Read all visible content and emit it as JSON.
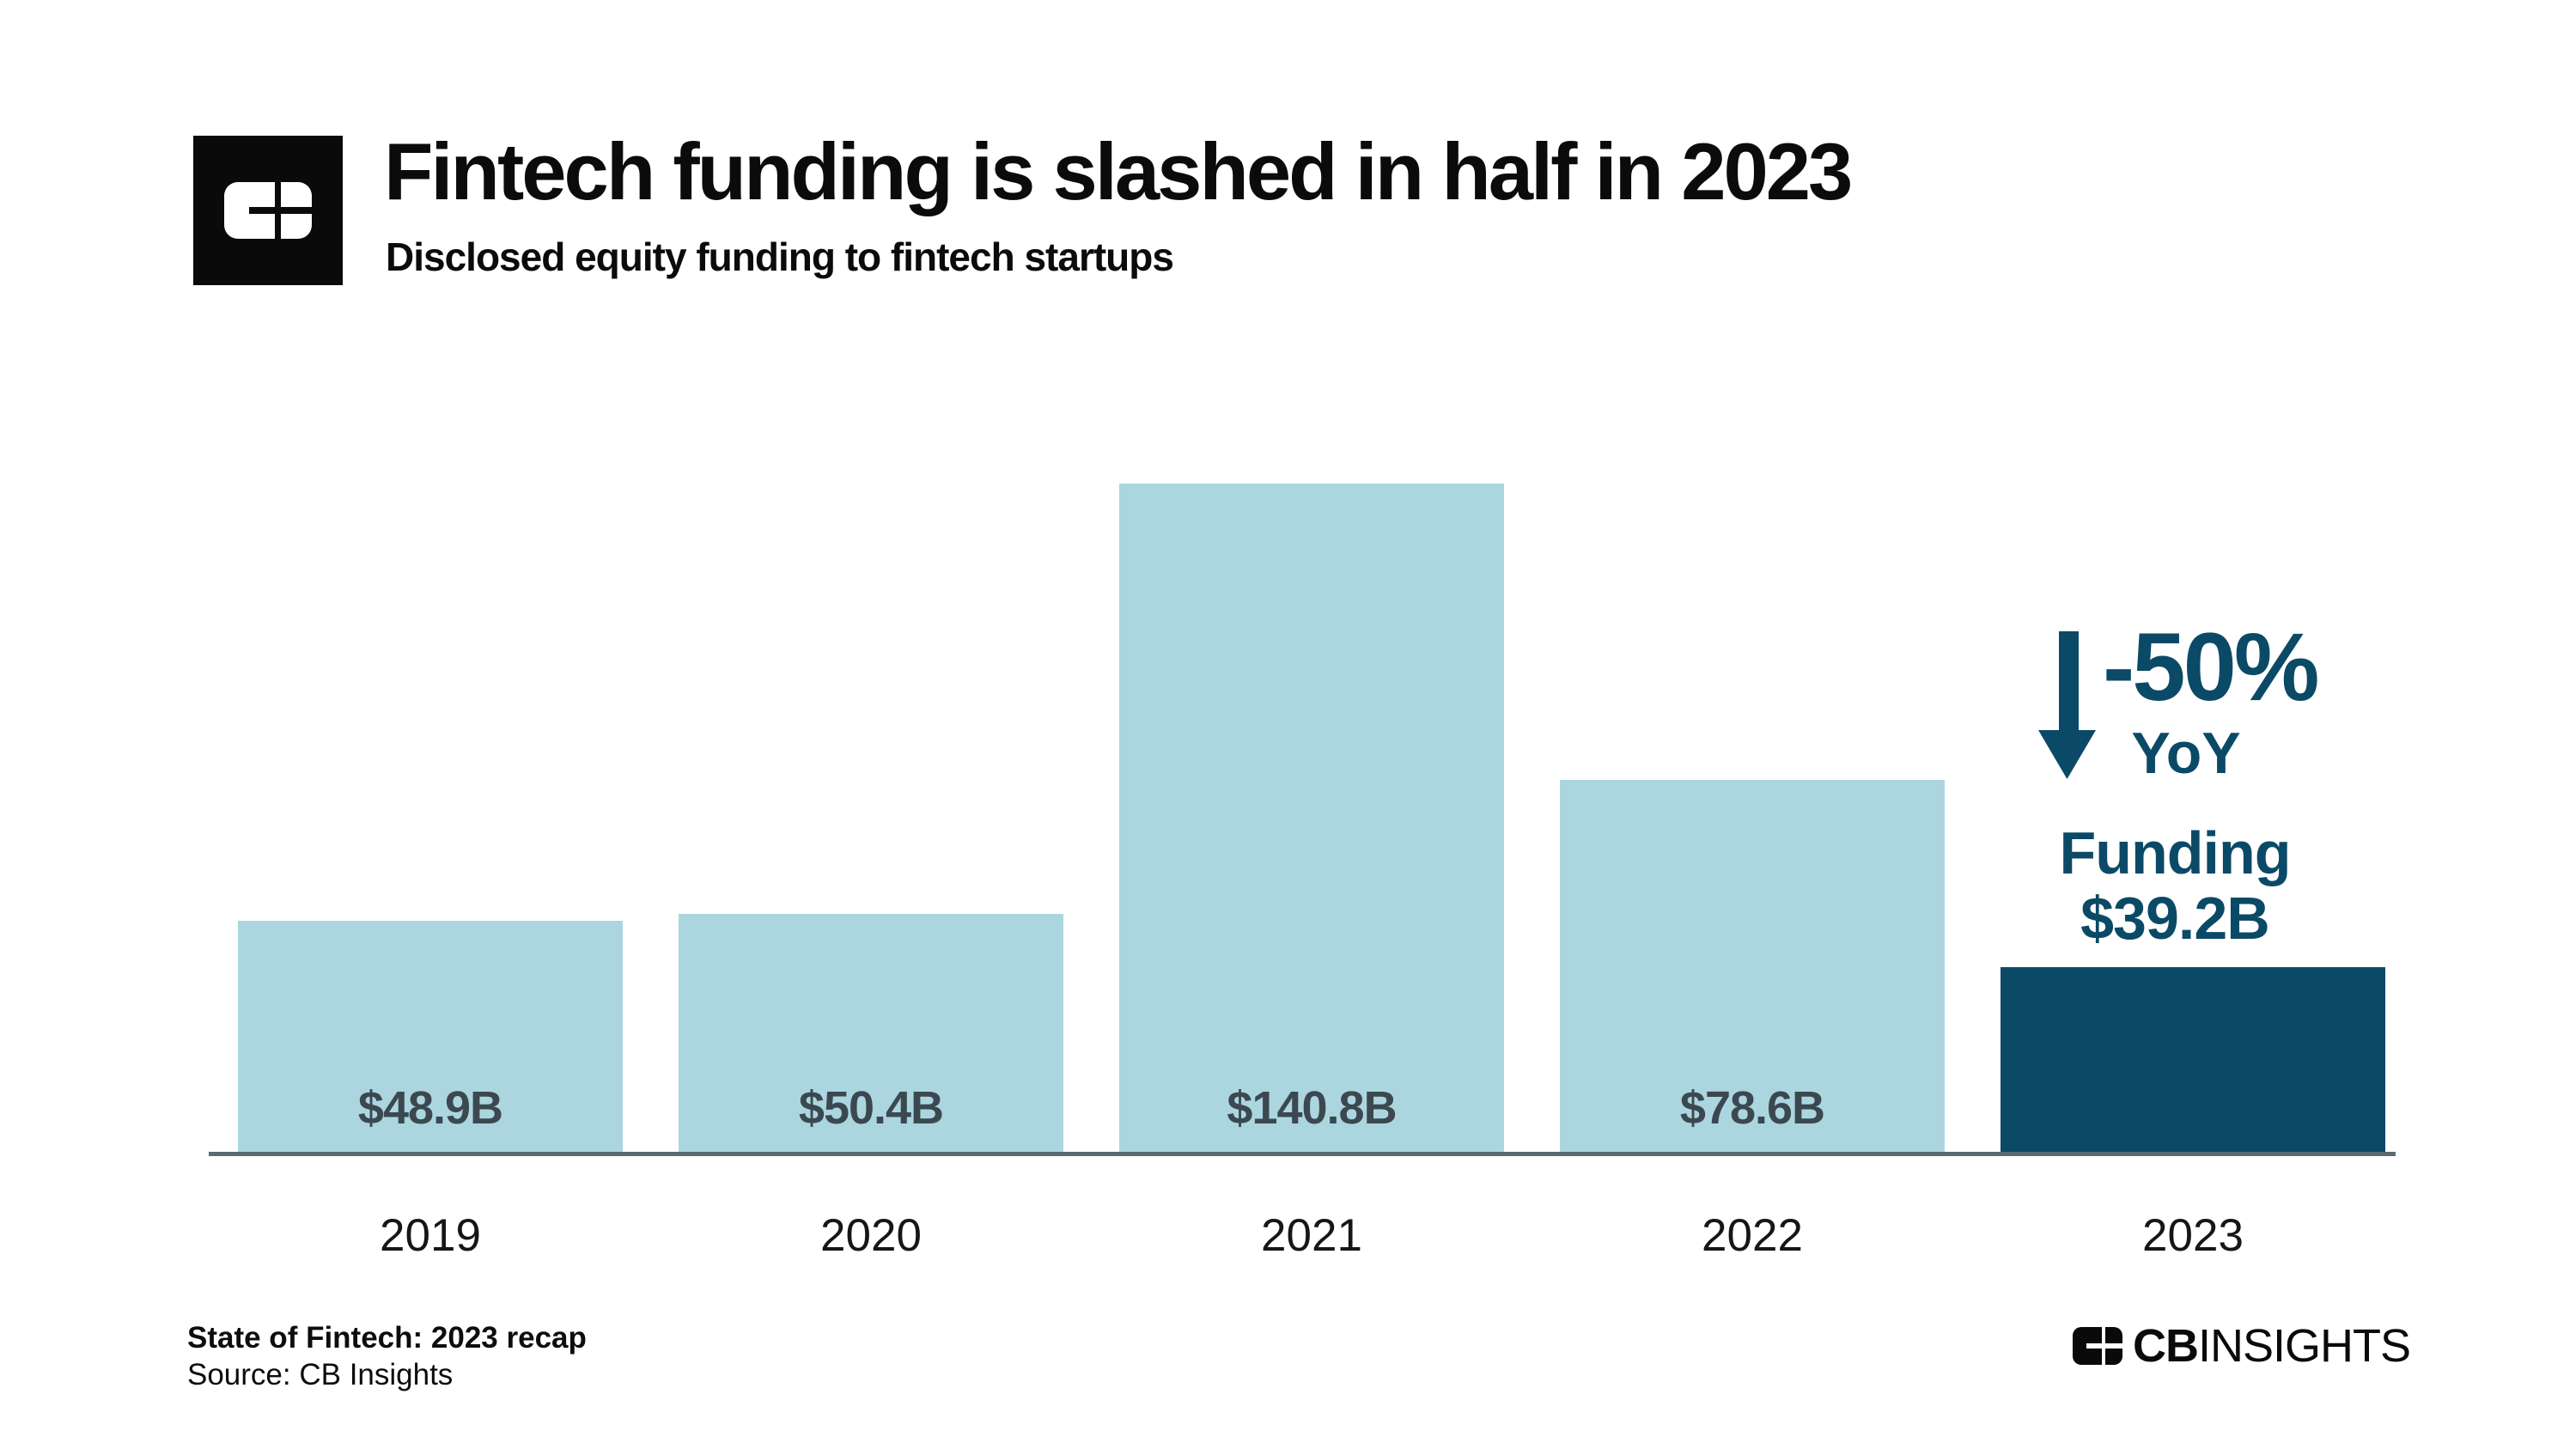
{
  "header": {
    "title": "Fintech funding is slashed in half in 2023",
    "subtitle": "Disclosed equity funding to fintech startups"
  },
  "chart_data": {
    "type": "bar",
    "title": "Fintech funding is slashed in half in 2023",
    "subtitle": "Disclosed equity funding to fintech startups",
    "categories": [
      "2019",
      "2020",
      "2021",
      "2022",
      "2023"
    ],
    "values": [
      48.9,
      50.4,
      140.8,
      78.6,
      39.2
    ],
    "bar_labels": [
      "$48.9B",
      "$50.4B",
      "$140.8B",
      "$78.6B",
      ""
    ],
    "bar_colors": [
      "#abd6e0",
      "#abd6e0",
      "#abd6e0",
      "#abd6e0",
      "#0b4a67"
    ],
    "unit": "USD billions",
    "ylim": [
      0,
      140.8
    ],
    "grid": false,
    "legend": "none",
    "annotation": {
      "change": "-50%",
      "period": "YoY",
      "funding_label": "Funding",
      "funding_value": "$39.2B",
      "arrow": "down",
      "color": "#0b4a67"
    }
  },
  "colors": {
    "bar_light": "#abd6e0",
    "bar_dark": "#0b4a67",
    "annotation_text": "#0b4a67",
    "value_label": "#3c4850",
    "axis_line": "#5a6a72",
    "background": "#ffffff",
    "logo_black": "#0a0a0a"
  },
  "footer": {
    "report": "State of Fintech: 2023 recap",
    "source": "Source: CB Insights",
    "brand_cb": "CB",
    "brand_insights": "INSIGHTS"
  }
}
